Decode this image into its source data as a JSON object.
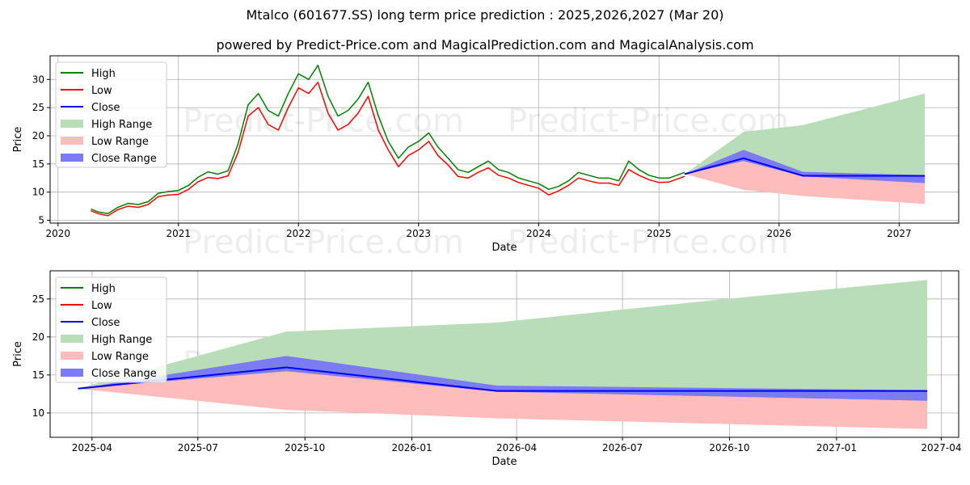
{
  "title": "Mtalco (601677.SS) long term price prediction : 2025,2026,2027 (Mar 20)",
  "subtitle": "powered by Predict-Price.com and MagicalPrediction.com and MagicalAnalysis.com",
  "watermark": "Predict-Price.com",
  "legend": {
    "high": "High",
    "low": "Low",
    "close": "Close",
    "high_range": "High Range",
    "low_range": "Low Range",
    "close_range": "Close Range"
  },
  "colors": {
    "high": "#008000",
    "low": "#ff0000",
    "close": "#0000ff",
    "high_range": "#b9dcb9",
    "low_range": "#ffbcbc",
    "close_range": "#7b7bf4"
  },
  "chart_data": [
    {
      "type": "line",
      "panel": "long-term",
      "xlabel": "Date",
      "ylabel": "Price",
      "x_ticks": [
        "2020",
        "2021",
        "2022",
        "2023",
        "2024",
        "2025",
        "2026",
        "2027"
      ],
      "y_ticks": [
        5,
        10,
        15,
        20,
        25,
        30
      ],
      "xlim": [
        "2019-12-08",
        "2027-07-01"
      ],
      "ylim": [
        4.5,
        34.2
      ],
      "grid": true,
      "legend_position": "top-left",
      "history": {
        "dates": [
          "2020-04-10",
          "2020-05-01",
          "2020-06-01",
          "2020-07-01",
          "2020-08-01",
          "2020-09-01",
          "2020-10-01",
          "2020-11-01",
          "2020-12-01",
          "2021-01-01",
          "2021-02-01",
          "2021-03-01",
          "2021-04-01",
          "2021-05-01",
          "2021-06-01",
          "2021-07-01",
          "2021-08-01",
          "2021-09-01",
          "2021-10-01",
          "2021-11-01",
          "2021-12-01",
          "2022-01-01",
          "2022-02-01",
          "2022-03-01",
          "2022-04-01",
          "2022-05-01",
          "2022-06-01",
          "2022-07-01",
          "2022-08-01",
          "2022-09-01",
          "2022-10-01",
          "2022-11-01",
          "2022-12-01",
          "2023-01-01",
          "2023-02-01",
          "2023-03-01",
          "2023-04-01",
          "2023-05-01",
          "2023-06-01",
          "2023-07-01",
          "2023-08-01",
          "2023-09-01",
          "2023-10-01",
          "2023-11-01",
          "2023-12-01",
          "2024-01-01",
          "2024-02-01",
          "2024-03-01",
          "2024-04-01",
          "2024-05-01",
          "2024-06-01",
          "2024-07-01",
          "2024-08-01",
          "2024-09-01",
          "2024-10-01",
          "2024-11-01",
          "2024-12-01",
          "2025-01-01",
          "2025-02-01",
          "2025-03-20"
        ],
        "high": [
          7.0,
          6.5,
          6.2,
          7.3,
          8.0,
          7.8,
          8.3,
          9.8,
          10.1,
          10.3,
          11.2,
          12.6,
          13.6,
          13.2,
          13.8,
          18.5,
          25.5,
          27.5,
          24.5,
          23.5,
          27.5,
          31.0,
          30.0,
          32.5,
          27.0,
          23.5,
          24.5,
          26.5,
          29.5,
          23.5,
          19.0,
          16.0,
          18.0,
          19.0,
          20.5,
          18.0,
          16.0,
          14.0,
          13.5,
          14.5,
          15.5,
          14.0,
          13.5,
          12.5,
          12.0,
          11.5,
          10.5,
          11.0,
          12.0,
          13.5,
          13.0,
          12.5,
          12.5,
          12.0,
          15.5,
          14.0,
          13.0,
          12.5,
          12.5,
          13.5
        ],
        "low": [
          6.7,
          6.2,
          5.8,
          6.9,
          7.5,
          7.3,
          7.8,
          9.2,
          9.5,
          9.6,
          10.5,
          11.8,
          12.6,
          12.4,
          12.9,
          17.0,
          23.5,
          25.0,
          22.0,
          21.0,
          25.0,
          28.5,
          27.5,
          29.5,
          24.0,
          21.0,
          22.0,
          24.0,
          27.0,
          21.0,
          17.5,
          14.5,
          16.5,
          17.5,
          19.0,
          16.5,
          14.8,
          12.8,
          12.5,
          13.5,
          14.3,
          13.0,
          12.5,
          11.7,
          11.2,
          10.7,
          9.5,
          10.2,
          11.2,
          12.5,
          12.0,
          11.6,
          11.6,
          11.2,
          14.0,
          13.0,
          12.2,
          11.7,
          11.8,
          12.8
        ],
        "close": [
          6.85,
          6.35,
          6.0,
          7.1,
          7.75,
          7.55,
          8.05,
          9.5,
          9.8,
          9.95,
          10.85,
          12.2,
          13.1,
          12.8,
          13.35,
          17.75,
          24.5,
          26.25,
          23.25,
          22.25,
          26.25,
          29.75,
          28.75,
          31.0,
          25.5,
          22.25,
          23.25,
          25.25,
          28.25,
          22.25,
          18.25,
          15.25,
          17.25,
          18.25,
          19.75,
          17.25,
          15.4,
          13.4,
          13.0,
          14.0,
          14.9,
          13.5,
          13.0,
          12.1,
          11.6,
          11.1,
          10.0,
          10.6,
          11.6,
          13.0,
          12.5,
          12.05,
          12.05,
          11.6,
          14.75,
          13.5,
          12.6,
          12.1,
          12.15,
          13.15
        ]
      },
      "forecast": {
        "dates": [
          "2025-03-20",
          "2025-09-15",
          "2026-03-15",
          "2027-03-20"
        ],
        "high_range_upper": [
          13.2,
          20.7,
          21.9,
          27.5
        ],
        "high_range_lower": [
          13.2,
          16.0,
          12.9,
          12.9
        ],
        "low_range_upper": [
          13.2,
          16.0,
          12.9,
          12.9
        ],
        "low_range_lower": [
          13.2,
          10.4,
          9.3,
          7.9
        ],
        "close_range_upper": [
          13.2,
          17.5,
          13.6,
          13.0
        ],
        "close_range_lower": [
          13.2,
          15.5,
          12.8,
          11.6
        ],
        "close": [
          13.2,
          16.0,
          12.9,
          12.9
        ]
      }
    },
    {
      "type": "line",
      "panel": "forecast-zoom",
      "xlabel": "Date",
      "ylabel": "Price",
      "x_ticks": [
        "2025-04",
        "2025-07",
        "2025-10",
        "2026-01",
        "2026-04",
        "2026-07",
        "2026-10",
        "2027-01",
        "2027-04"
      ],
      "y_ticks": [
        10,
        15,
        20,
        25
      ],
      "xlim": [
        "2025-02-24",
        "2027-04-16"
      ],
      "ylim": [
        6.8,
        28.7
      ],
      "grid": true,
      "legend_position": "top-left",
      "dates": [
        "2025-03-20",
        "2025-09-15",
        "2026-03-15",
        "2026-09-15",
        "2027-03-20"
      ],
      "high_range_upper": [
        13.2,
        20.7,
        21.9,
        24.8,
        27.5
      ],
      "high_range_lower": [
        13.2,
        16.0,
        12.9,
        12.9,
        12.9
      ],
      "low_range_upper": [
        13.2,
        16.0,
        12.9,
        12.9,
        12.9
      ],
      "low_range_lower": [
        13.2,
        10.4,
        9.3,
        8.6,
        7.9
      ],
      "close_range_upper": [
        13.2,
        17.5,
        13.6,
        13.3,
        13.0
      ],
      "close_range_lower": [
        13.2,
        15.5,
        12.8,
        12.2,
        11.6
      ],
      "close": [
        13.2,
        16.0,
        12.9,
        12.9,
        12.9
      ]
    }
  ]
}
